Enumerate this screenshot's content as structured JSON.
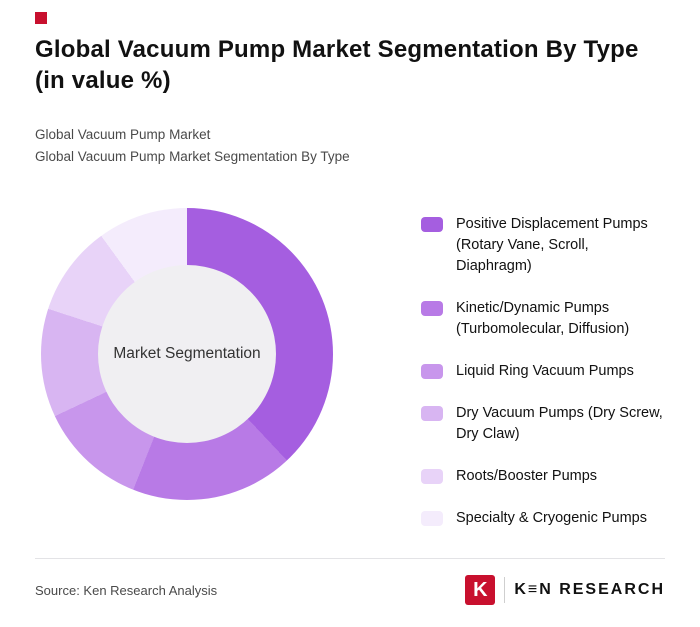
{
  "accent_color": "#c8102e",
  "header": {
    "title": "Global Vacuum Pump Market Segmentation By Type (in value %)",
    "subtitle1": "Global Vacuum Pump Market",
    "subtitle2": "Global Vacuum Pump Market Segmentation By Type"
  },
  "chart_data": {
    "type": "pie",
    "donut": true,
    "start_angle_deg": 0,
    "direction": "clockwise",
    "legend_position": "right",
    "center_label": "Market Segmentation",
    "center_color": "#f0eff2",
    "segments": [
      {
        "label": "Positive Displacement Pumps (Rotary Vane, Scroll, Diaphragm)",
        "value": 38,
        "color": "#a55ee0"
      },
      {
        "label": "Kinetic/Dynamic Pumps (Turbomolecular, Diffusion)",
        "value": 18,
        "color": "#b87ae6"
      },
      {
        "label": "Liquid Ring Vacuum Pumps",
        "value": 12,
        "color": "#c896ec"
      },
      {
        "label": "Dry Vacuum Pumps (Dry Screw, Dry Claw)",
        "value": 12,
        "color": "#d8b5f2"
      },
      {
        "label": "Roots/Booster Pumps",
        "value": 10,
        "color": "#e8d3f8"
      },
      {
        "label": "Specialty & Cryogenic Pumps",
        "value": 10,
        "color": "#f4ecfc"
      }
    ]
  },
  "footer": {
    "source": "Source: Ken Research Analysis",
    "logo_letter": "K",
    "logo_text": "K≡N RESEARCH"
  }
}
